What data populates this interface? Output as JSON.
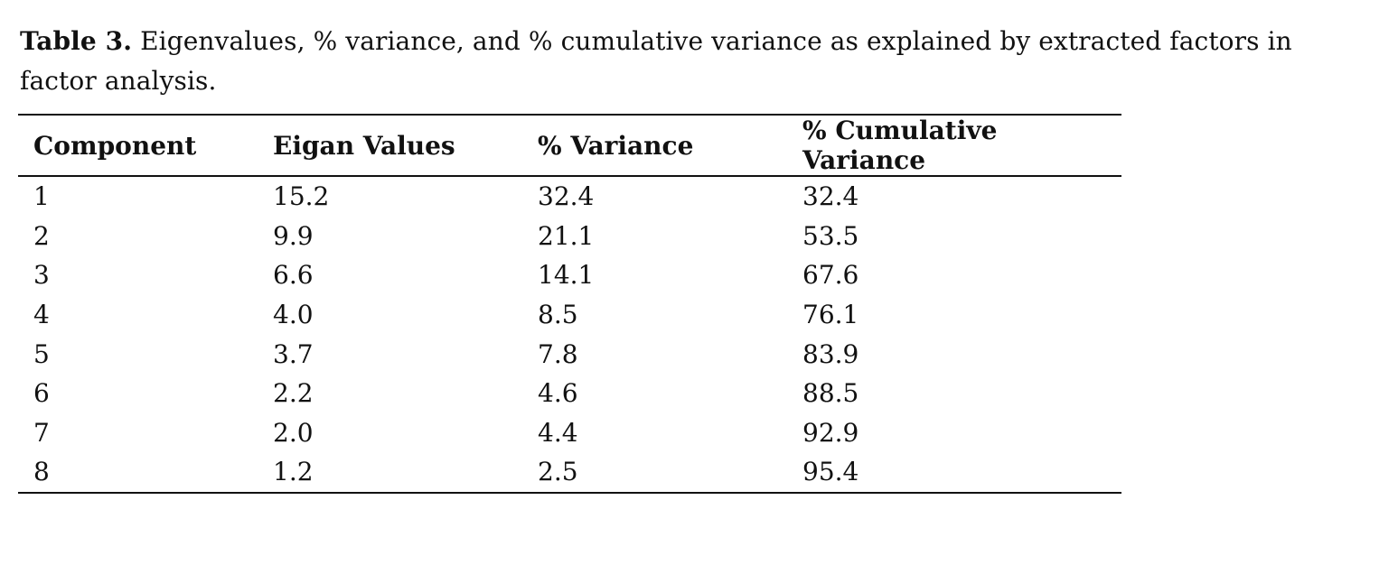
{
  "caption": {
    "label": "Table 3.",
    "text": " Eigenvalues, % variance, and % cumulative variance as explained by extracted factors in factor analysis."
  },
  "table": {
    "headers": [
      "Component",
      "Eigan Values",
      "% Variance",
      "% Cumulative Variance"
    ],
    "rows": [
      [
        "1",
        "15.2",
        "32.4",
        "32.4"
      ],
      [
        "2",
        "9.9",
        "21.1",
        "53.5"
      ],
      [
        "3",
        "6.6",
        "14.1",
        "67.6"
      ],
      [
        "4",
        "4.0",
        "8.5",
        "76.1"
      ],
      [
        "5",
        "3.7",
        "7.8",
        "83.9"
      ],
      [
        "6",
        "2.2",
        "4.6",
        "88.5"
      ],
      [
        "7",
        "2.0",
        "4.4",
        "92.9"
      ],
      [
        "8",
        "1.2",
        "2.5",
        "95.4"
      ]
    ]
  }
}
